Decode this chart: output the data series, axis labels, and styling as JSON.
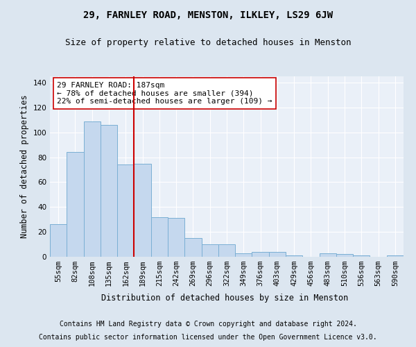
{
  "title": "29, FARNLEY ROAD, MENSTON, ILKLEY, LS29 6JW",
  "subtitle": "Size of property relative to detached houses in Menston",
  "xlabel": "Distribution of detached houses by size in Menston",
  "ylabel": "Number of detached properties",
  "categories": [
    "55sqm",
    "82sqm",
    "108sqm",
    "135sqm",
    "162sqm",
    "189sqm",
    "215sqm",
    "242sqm",
    "269sqm",
    "296sqm",
    "322sqm",
    "349sqm",
    "376sqm",
    "403sqm",
    "429sqm",
    "456sqm",
    "483sqm",
    "510sqm",
    "536sqm",
    "563sqm",
    "590sqm"
  ],
  "values": [
    26,
    84,
    109,
    106,
    74,
    75,
    32,
    31,
    15,
    10,
    10,
    3,
    4,
    4,
    1,
    0,
    3,
    2,
    1,
    0,
    1
  ],
  "bar_color": "#c5d8ee",
  "bar_edge_color": "#7aafd4",
  "vline_color": "#cc0000",
  "annotation_text": "29 FARNLEY ROAD: 187sqm\n← 78% of detached houses are smaller (394)\n22% of semi-detached houses are larger (109) →",
  "annotation_box_facecolor": "#ffffff",
  "annotation_box_edgecolor": "#cc0000",
  "ylim": [
    0,
    145
  ],
  "yticks": [
    0,
    20,
    40,
    60,
    80,
    100,
    120,
    140
  ],
  "bg_color": "#dce6f0",
  "plot_bg_color": "#eaf0f8",
  "footer_line1": "Contains HM Land Registry data © Crown copyright and database right 2024.",
  "footer_line2": "Contains public sector information licensed under the Open Government Licence v3.0.",
  "title_fontsize": 10,
  "subtitle_fontsize": 9,
  "axis_label_fontsize": 8.5,
  "tick_fontsize": 7.5,
  "annotation_fontsize": 8,
  "footer_fontsize": 7
}
